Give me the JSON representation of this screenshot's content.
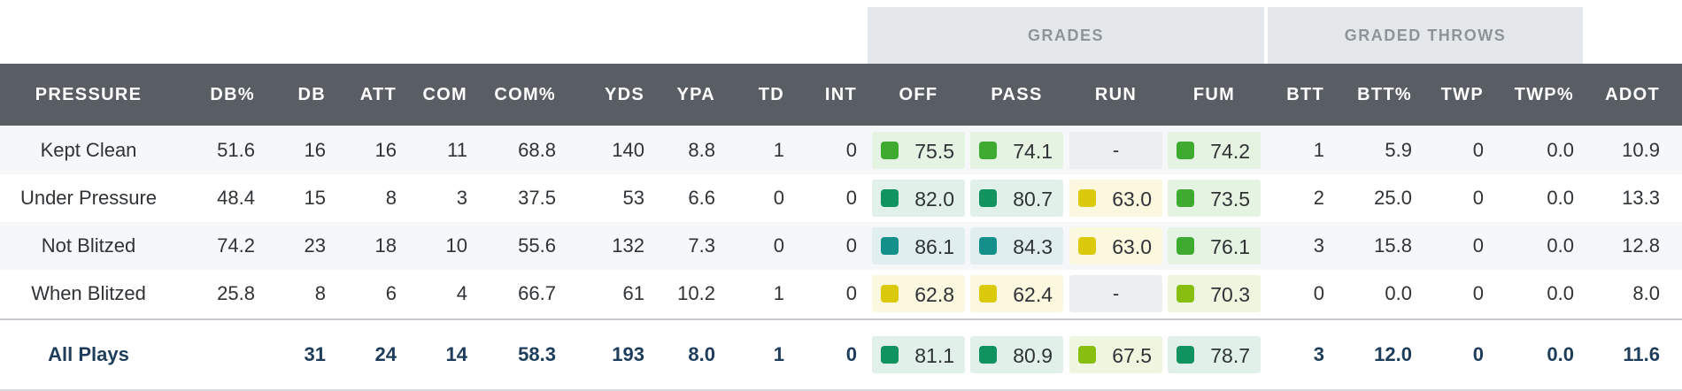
{
  "groups": {
    "grades": "GRADES",
    "graded_throws": "GRADED THROWS"
  },
  "columns": [
    "PRESSURE",
    "DB%",
    "DB",
    "ATT",
    "COM",
    "COM%",
    "YDS",
    "YPA",
    "TD",
    "INT",
    "OFF",
    "PASS",
    "RUN",
    "FUM",
    "BTT",
    "BTT%",
    "TWP",
    "TWP%",
    "ADOT"
  ],
  "rows": [
    {
      "label": "Kept Clean",
      "dbp": "51.6",
      "db": "16",
      "att": "16",
      "com": "11",
      "comp": "68.8",
      "yds": "140",
      "ypa": "8.8",
      "td": "1",
      "int": "0",
      "off": "75.5",
      "pass": "74.1",
      "run": "-",
      "fum": "74.2",
      "btt": "1",
      "bttp": "5.9",
      "twp": "0",
      "twpp": "0.0",
      "adot": "10.9"
    },
    {
      "label": "Under Pressure",
      "dbp": "48.4",
      "db": "15",
      "att": "8",
      "com": "3",
      "comp": "37.5",
      "yds": "53",
      "ypa": "6.6",
      "td": "0",
      "int": "0",
      "off": "82.0",
      "pass": "80.7",
      "run": "63.0",
      "fum": "73.5",
      "btt": "2",
      "bttp": "25.0",
      "twp": "0",
      "twpp": "0.0",
      "adot": "13.3"
    },
    {
      "label": "Not Blitzed",
      "dbp": "74.2",
      "db": "23",
      "att": "18",
      "com": "10",
      "comp": "55.6",
      "yds": "132",
      "ypa": "7.3",
      "td": "0",
      "int": "0",
      "off": "86.1",
      "pass": "84.3",
      "run": "63.0",
      "fum": "76.1",
      "btt": "3",
      "bttp": "15.8",
      "twp": "0",
      "twpp": "0.0",
      "adot": "12.8"
    },
    {
      "label": "When Blitzed",
      "dbp": "25.8",
      "db": "8",
      "att": "6",
      "com": "4",
      "comp": "66.7",
      "yds": "61",
      "ypa": "10.2",
      "td": "1",
      "int": "0",
      "off": "62.8",
      "pass": "62.4",
      "run": "-",
      "fum": "70.3",
      "btt": "0",
      "bttp": "0.0",
      "twp": "0",
      "twpp": "0.0",
      "adot": "8.0"
    }
  ],
  "total": {
    "label": "All Plays",
    "db": "31",
    "att": "24",
    "com": "14",
    "comp": "58.3",
    "yds": "193",
    "ypa": "8.0",
    "td": "1",
    "int": "0",
    "off": "81.1",
    "pass": "80.9",
    "run": "67.5",
    "fum": "78.7",
    "btt": "3",
    "bttp": "12.0",
    "twp": "0",
    "twpp": "0.0",
    "adot": "11.6"
  },
  "grade_colors": {
    "teal": {
      "sq": "#13908a",
      "bg": "#e0eeef"
    },
    "dkgreen": {
      "sq": "#10935e",
      "bg": "#e1f1ea"
    },
    "green": {
      "sq": "#3eaa2f",
      "bg": "#e5f3e2"
    },
    "ltgreen": {
      "sq": "#86bf0f",
      "bg": "#eff6df"
    },
    "yellow": {
      "sq": "#dbc90c",
      "bg": "#fbf8df"
    },
    "empty": {
      "sq": "transparent",
      "bg": "#eceef0"
    }
  }
}
